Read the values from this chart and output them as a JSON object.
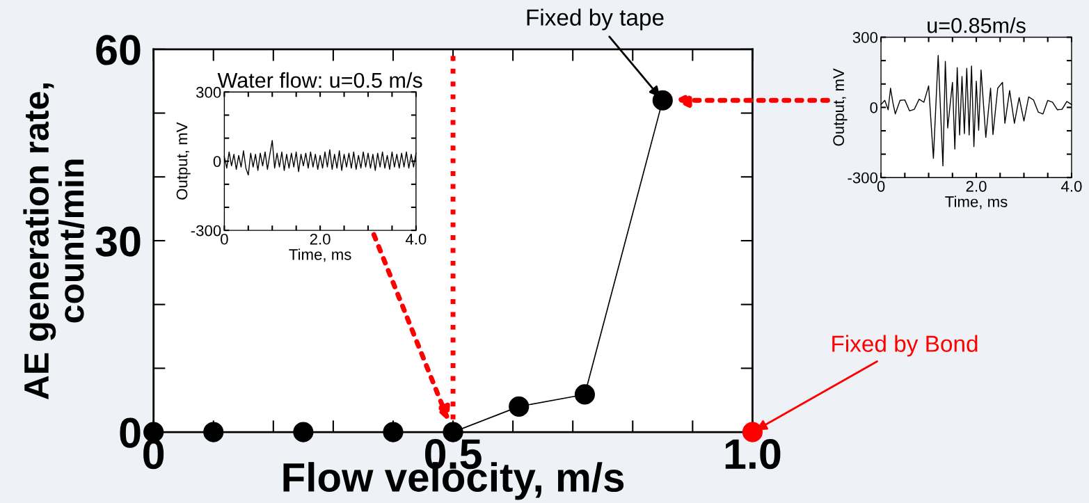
{
  "chart_data": [
    {
      "type": "scatter",
      "xlabel": "Flow velocity, m/s",
      "ylabel": "AE generation rate,\ncount/min",
      "xlim": [
        0,
        1
      ],
      "xticks": [
        0,
        0.5,
        {
          "value": 1,
          "label": "1.0"
        }
      ],
      "ylim": [
        0,
        60
      ],
      "yticks": [
        0,
        30,
        60
      ],
      "marker": "circle",
      "grid": false,
      "legend": false,
      "series": [
        {
          "color": "#000000",
          "x": [
            0,
            0.1,
            0.25,
            0.4
          ],
          "values": [
            0,
            0,
            0,
            0
          ]
        },
        {
          "type": "line",
          "color": "#000000",
          "x": [
            0.5,
            0.61,
            0.72,
            0.85
          ],
          "values": [
            0,
            4,
            5.9,
            52
          ]
        },
        {
          "color": "#ff0000",
          "x": [
            1.0
          ],
          "values": [
            0
          ]
        }
      ],
      "ref_lines": [
        {
          "axis": "x",
          "value": 0.5,
          "color": "#ff0000",
          "line_style": "dotted"
        }
      ],
      "annotations": [
        {
          "text": "Fixed by tape",
          "x": 0.85,
          "y": 52
        },
        {
          "text": "Fixed by Bond",
          "x": 1.0,
          "y": 0
        }
      ]
    },
    {
      "type": "line",
      "title": "Water flow: u=0.5 m/s",
      "xlabel": "Time, ms",
      "ylabel": "Output, mV",
      "xlim": [
        0,
        4
      ],
      "xticks": [
        0,
        {
          "value": 2,
          "label": "2.0"
        },
        {
          "value": 4,
          "label": "4.0"
        }
      ],
      "ylim": [
        -300,
        300
      ],
      "yticks": [
        -300,
        0,
        300
      ],
      "marker": "none",
      "series": [
        {
          "color": "#000000",
          "x": [
            0,
            0.05,
            0.1,
            0.15,
            0.2,
            0.25,
            0.3,
            0.35,
            0.4,
            0.45,
            0.5,
            0.55,
            0.6,
            0.65,
            0.7,
            0.75,
            0.8,
            0.85,
            0.9,
            0.95,
            1.0,
            1.05,
            1.1,
            1.15,
            1.2,
            1.25,
            1.3,
            1.35,
            1.4,
            1.45,
            1.5,
            1.55,
            1.6,
            1.65,
            1.7,
            1.75,
            1.8,
            1.85,
            1.9,
            1.95,
            2.0,
            2.05,
            2.1,
            2.15,
            2.2,
            2.25,
            2.3,
            2.35,
            2.4,
            2.45,
            2.5,
            2.55,
            2.6,
            2.65,
            2.7,
            2.75,
            2.8,
            2.85,
            2.9,
            2.95,
            3.0,
            3.05,
            3.1,
            3.15,
            3.2,
            3.25,
            3.3,
            3.35,
            3.4,
            3.45,
            3.5,
            3.55,
            3.6,
            3.65,
            3.7,
            3.75,
            3.8,
            3.85,
            3.9,
            3.95,
            4.0
          ],
          "values": [
            20,
            -30,
            40,
            -20,
            30,
            -35,
            25,
            -25,
            45,
            -30,
            -60,
            35,
            -25,
            30,
            -40,
            35,
            -20,
            40,
            -35,
            30,
            90,
            -30,
            35,
            -25,
            40,
            -40,
            30,
            -30,
            35,
            -25,
            40,
            -45,
            30,
            -20,
            35,
            -30,
            40,
            -25,
            30,
            -35,
            25,
            -30,
            40,
            -25,
            50,
            -35,
            30,
            -30,
            45,
            -40,
            30,
            -25,
            35,
            -30,
            40,
            -35,
            25,
            -30,
            40,
            -25,
            35,
            -30,
            30,
            -40,
            35,
            -25,
            40,
            -30,
            25,
            -35,
            40,
            -25,
            30,
            -30,
            35,
            -25,
            40,
            -30,
            30,
            -25,
            35
          ]
        }
      ]
    },
    {
      "type": "line",
      "title": "u=0.85m/s",
      "xlabel": "Time, ms",
      "ylabel": "Output, mV",
      "xlim": [
        0,
        4
      ],
      "xticks": [
        0,
        {
          "value": 2,
          "label": "2.0"
        },
        {
          "value": 4,
          "label": "4.0"
        }
      ],
      "ylim": [
        -300,
        300
      ],
      "yticks": [
        -300,
        0,
        300
      ],
      "marker": "none",
      "series": [
        {
          "color": "#000000",
          "x": [
            0,
            0.08,
            0.15,
            0.2,
            0.25,
            0.3,
            0.4,
            0.5,
            0.6,
            0.7,
            0.8,
            0.9,
            1.0,
            1.1,
            1.2,
            1.3,
            1.35,
            1.4,
            1.5,
            1.55,
            1.6,
            1.65,
            1.7,
            1.75,
            1.8,
            1.85,
            1.9,
            1.95,
            2.0,
            2.05,
            2.1,
            2.2,
            2.3,
            2.35,
            2.45,
            2.55,
            2.6,
            2.7,
            2.8,
            2.9,
            3.0,
            3.1,
            3.2,
            3.3,
            3.4,
            3.5,
            3.6,
            3.7,
            3.8,
            3.9,
            4.0
          ],
          "values": [
            12,
            30,
            -10,
            82,
            20,
            -28,
            30,
            32,
            -15,
            -8,
            35,
            22,
            92,
            -218,
            222,
            -250,
            197,
            -88,
            107,
            -178,
            170,
            -118,
            132,
            -112,
            167,
            -118,
            177,
            -168,
            112,
            -98,
            160,
            -128,
            82,
            -116,
            82,
            107,
            -68,
            72,
            -68,
            42,
            -58,
            45,
            32,
            -20,
            -28,
            30,
            22,
            -10,
            -8,
            25,
            12
          ]
        }
      ]
    }
  ]
}
